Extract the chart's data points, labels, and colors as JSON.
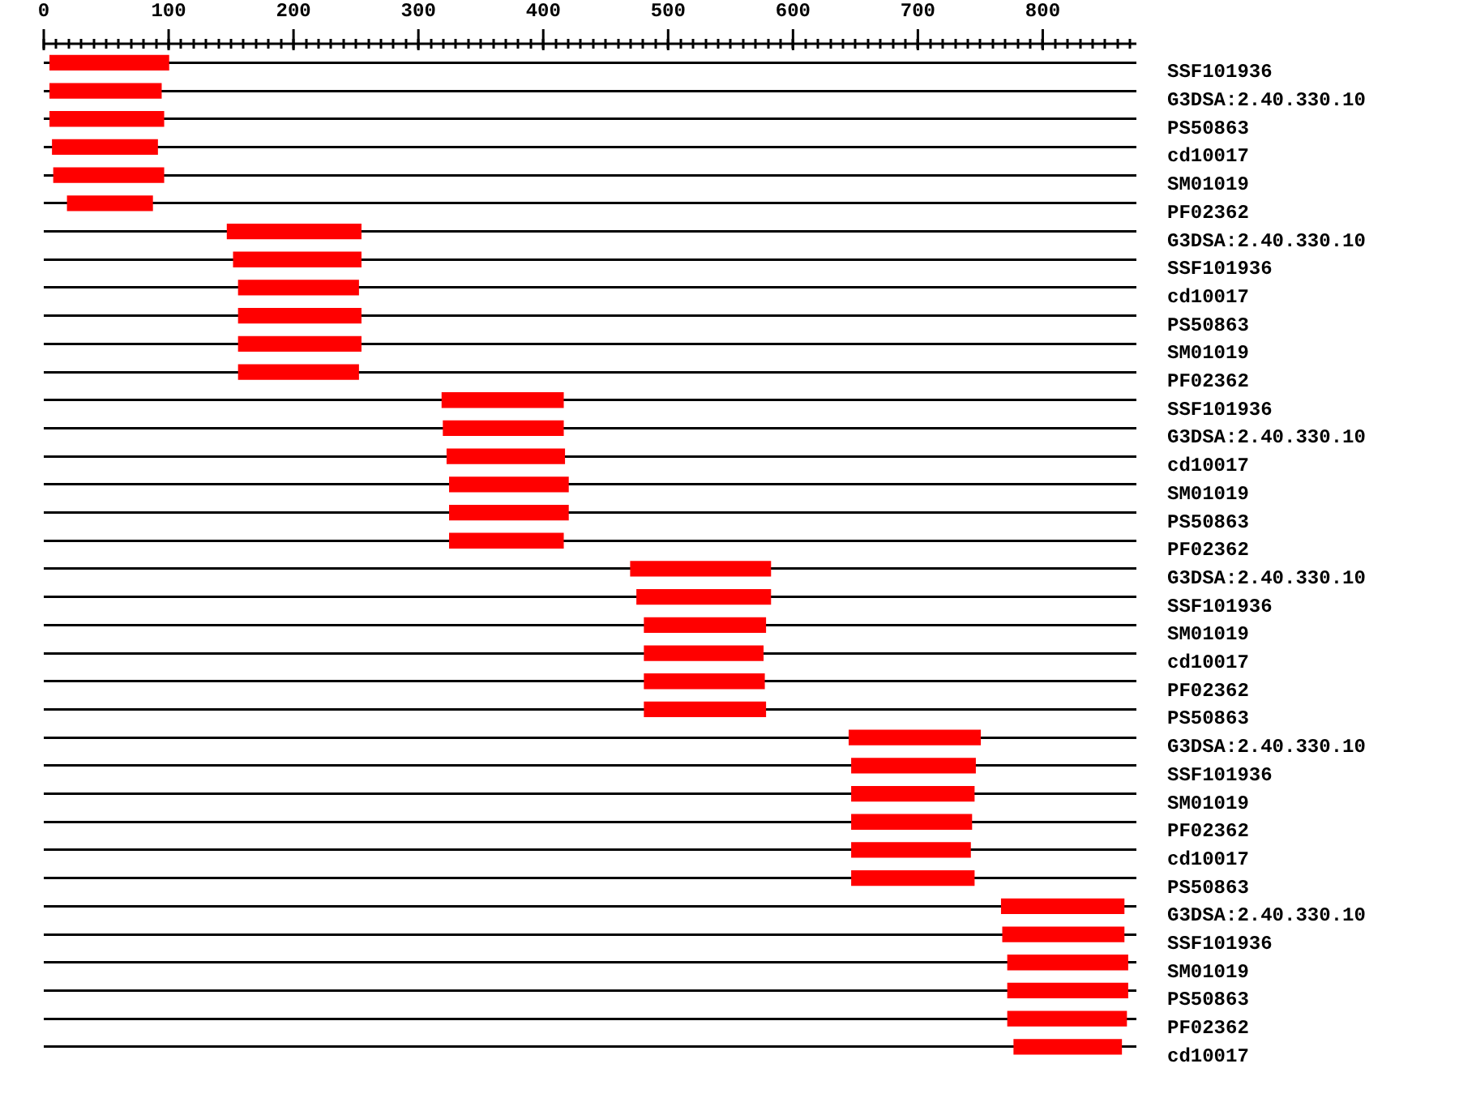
{
  "chart_data": {
    "type": "bar",
    "orientation": "horizontal",
    "grid": "y",
    "legend": false,
    "categories": [
      "SSF101936",
      "G3DSA:2.40.330.10",
      "PS50863",
      "cd10017",
      "SM01019",
      "PF02362",
      "G3DSA:2.40.330.10",
      "SSF101936",
      "cd10017",
      "PS50863",
      "SM01019",
      "PF02362",
      "SSF101936",
      "G3DSA:2.40.330.10",
      "cd10017",
      "SM01019",
      "PS50863",
      "PF02362",
      "G3DSA:2.40.330.10",
      "SSF101936",
      "SM01019",
      "cd10017",
      "PF02362",
      "PS50863",
      "G3DSA:2.40.330.10",
      "SSF101936",
      "SM01019",
      "PF02362",
      "cd10017",
      "PS50863",
      "G3DSA:2.40.330.10",
      "SSF101936",
      "SM01019",
      "PS50863",
      "PF02362",
      "cd10017"
    ],
    "base": [
      5,
      5,
      5,
      7,
      8,
      19,
      147,
      152,
      156,
      156,
      156,
      156,
      319,
      320,
      323,
      325,
      325,
      325,
      470,
      475,
      481,
      481,
      481,
      481,
      645,
      647,
      647,
      647,
      647,
      647,
      767,
      768,
      772,
      772,
      772,
      777
    ],
    "values": [
      95,
      89,
      91,
      84,
      88,
      68,
      107,
      102,
      96,
      98,
      98,
      96,
      97,
      96,
      94,
      95,
      95,
      91,
      112,
      107,
      97,
      95,
      96,
      97,
      105,
      99,
      98,
      96,
      95,
      98,
      98,
      97,
      96,
      96,
      95,
      86
    ],
    "color": "#ff0000",
    "xlim": [
      0,
      875
    ],
    "xticks": [
      0,
      {
        "value": 10,
        "label": null
      },
      {
        "value": 20,
        "label": null
      },
      {
        "value": 30,
        "label": null
      },
      {
        "value": 40,
        "label": null
      },
      {
        "value": 50,
        "label": null
      },
      {
        "value": 60,
        "label": null
      },
      {
        "value": 70,
        "label": null
      },
      {
        "value": 80,
        "label": null
      },
      {
        "value": 90,
        "label": null
      },
      100,
      {
        "value": 110,
        "label": null
      },
      {
        "value": 120,
        "label": null
      },
      {
        "value": 130,
        "label": null
      },
      {
        "value": 140,
        "label": null
      },
      {
        "value": 150,
        "label": null
      },
      {
        "value": 160,
        "label": null
      },
      {
        "value": 170,
        "label": null
      },
      {
        "value": 180,
        "label": null
      },
      {
        "value": 190,
        "label": null
      },
      200,
      {
        "value": 210,
        "label": null
      },
      {
        "value": 220,
        "label": null
      },
      {
        "value": 230,
        "label": null
      },
      {
        "value": 240,
        "label": null
      },
      {
        "value": 250,
        "label": null
      },
      {
        "value": 260,
        "label": null
      },
      {
        "value": 270,
        "label": null
      },
      {
        "value": 280,
        "label": null
      },
      {
        "value": 290,
        "label": null
      },
      300,
      {
        "value": 310,
        "label": null
      },
      {
        "value": 320,
        "label": null
      },
      {
        "value": 330,
        "label": null
      },
      {
        "value": 340,
        "label": null
      },
      {
        "value": 350,
        "label": null
      },
      {
        "value": 360,
        "label": null
      },
      {
        "value": 370,
        "label": null
      },
      {
        "value": 380,
        "label": null
      },
      {
        "value": 390,
        "label": null
      },
      400,
      {
        "value": 410,
        "label": null
      },
      {
        "value": 420,
        "label": null
      },
      {
        "value": 430,
        "label": null
      },
      {
        "value": 440,
        "label": null
      },
      {
        "value": 450,
        "label": null
      },
      {
        "value": 460,
        "label": null
      },
      {
        "value": 470,
        "label": null
      },
      {
        "value": 480,
        "label": null
      },
      {
        "value": 490,
        "label": null
      },
      500,
      {
        "value": 510,
        "label": null
      },
      {
        "value": 520,
        "label": null
      },
      {
        "value": 530,
        "label": null
      },
      {
        "value": 540,
        "label": null
      },
      {
        "value": 550,
        "label": null
      },
      {
        "value": 560,
        "label": null
      },
      {
        "value": 570,
        "label": null
      },
      {
        "value": 580,
        "label": null
      },
      {
        "value": 590,
        "label": null
      },
      600,
      {
        "value": 610,
        "label": null
      },
      {
        "value": 620,
        "label": null
      },
      {
        "value": 630,
        "label": null
      },
      {
        "value": 640,
        "label": null
      },
      {
        "value": 650,
        "label": null
      },
      {
        "value": 660,
        "label": null
      },
      {
        "value": 670,
        "label": null
      },
      {
        "value": 680,
        "label": null
      },
      {
        "value": 690,
        "label": null
      },
      700,
      {
        "value": 710,
        "label": null
      },
      {
        "value": 720,
        "label": null
      },
      {
        "value": 730,
        "label": null
      },
      {
        "value": 740,
        "label": null
      },
      {
        "value": 750,
        "label": null
      },
      {
        "value": 760,
        "label": null
      },
      {
        "value": 770,
        "label": null
      },
      {
        "value": 780,
        "label": null
      },
      {
        "value": 790,
        "label": null
      },
      800,
      {
        "value": 810,
        "label": null
      },
      {
        "value": 820,
        "label": null
      },
      {
        "value": 830,
        "label": null
      },
      {
        "value": 840,
        "label": null
      },
      {
        "value": 850,
        "label": null
      },
      {
        "value": 860,
        "label": null
      },
      {
        "value": 870,
        "label": null
      }
    ]
  }
}
